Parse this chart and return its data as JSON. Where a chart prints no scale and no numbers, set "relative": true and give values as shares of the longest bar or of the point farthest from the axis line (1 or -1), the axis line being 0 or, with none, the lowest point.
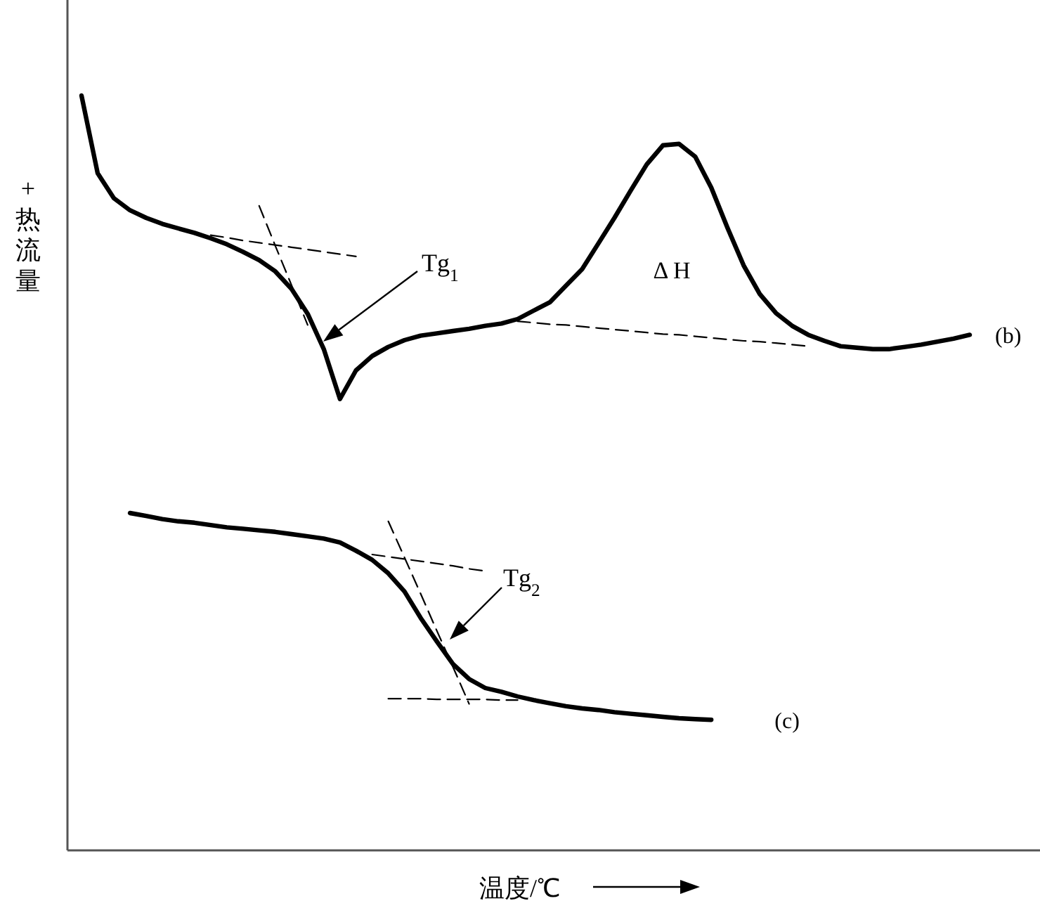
{
  "chart_data": {
    "type": "line",
    "relative": true,
    "xlabel": "温度/℃",
    "ylabel": "+热流量",
    "legend": false,
    "grid": false,
    "marker": "none",
    "line_style": "solid",
    "categories": [
      null,
      null,
      null,
      null,
      null,
      null,
      null,
      null,
      null,
      null,
      null,
      null,
      null,
      null,
      null,
      null,
      null,
      null,
      null,
      null,
      null,
      null,
      null,
      null,
      null,
      null,
      null,
      null,
      null,
      null,
      null,
      null,
      null,
      null,
      null,
      null,
      null,
      null,
      null,
      null,
      null,
      null,
      null,
      null,
      null,
      null,
      null,
      null,
      null,
      null,
      null,
      null,
      null,
      null,
      null,
      null
    ],
    "series": [
      {
        "name": "(b)",
        "color": "#000000",
        "values": [
          1.0,
          0.897,
          0.864,
          0.848,
          0.838,
          0.83,
          0.824,
          0.818,
          0.811,
          0.803,
          0.793,
          0.782,
          0.767,
          0.744,
          0.711,
          0.664,
          0.598,
          0.636,
          0.655,
          0.667,
          0.676,
          0.682,
          0.685,
          0.688,
          0.691,
          0.695,
          0.698,
          0.704,
          0.715,
          0.726,
          0.748,
          0.77,
          0.804,
          0.838,
          0.874,
          0.909,
          0.934,
          0.936,
          0.919,
          0.878,
          0.825,
          0.775,
          0.737,
          0.712,
          0.695,
          0.683,
          0.675,
          0.668,
          0.666,
          0.664,
          0.664,
          0.667,
          0.67,
          0.674,
          0.678,
          0.683
        ]
      },
      {
        "name": "(c)",
        "color": "#000000",
        "values": [
          null,
          null,
          null,
          0.447,
          0.443,
          0.439,
          0.436,
          0.434,
          0.431,
          0.428,
          0.426,
          0.424,
          0.422,
          0.419,
          0.416,
          0.413,
          0.408,
          0.397,
          0.385,
          0.367,
          0.343,
          0.308,
          0.277,
          0.247,
          0.227,
          0.215,
          0.21,
          0.204,
          0.199,
          0.195,
          0.191,
          0.188,
          0.186,
          0.183,
          0.181,
          0.179,
          0.177,
          0.175,
          0.174,
          0.173,
          null,
          null,
          null,
          null,
          null,
          null,
          null,
          null,
          null,
          null,
          null,
          null,
          null,
          null,
          null,
          null
        ]
      },
      {
        "color": "#000000",
        "line_style": "dashed",
        "values": [
          null,
          null,
          null,
          null,
          null,
          null,
          null,
          null,
          0.815,
          0.812,
          0.808,
          0.805,
          0.802,
          0.799,
          0.796,
          0.793,
          0.79,
          0.787,
          null,
          null,
          null,
          null,
          null,
          null,
          null,
          null,
          null,
          null,
          null,
          null,
          null,
          null,
          null,
          null,
          null,
          null,
          null,
          null,
          null,
          null,
          null,
          null,
          null,
          null,
          null,
          null,
          null,
          null,
          null,
          null,
          null,
          null,
          null,
          null,
          null,
          null
        ]
      },
      {
        "color": "#000000",
        "line_style": "dashed",
        "values": [
          null,
          null,
          null,
          null,
          null,
          null,
          null,
          null,
          null,
          null,
          null,
          0.854,
          0.801,
          0.749,
          0.696,
          null,
          null,
          null,
          null,
          null,
          null,
          null,
          null,
          null,
          null,
          null,
          null,
          null,
          null,
          null,
          null,
          null,
          null,
          null,
          null,
          null,
          null,
          null,
          null,
          null,
          null,
          null,
          null,
          null,
          null,
          null,
          null,
          null,
          null,
          null,
          null,
          null,
          null,
          null,
          null,
          null
        ]
      },
      {
        "color": "#000000",
        "line_style": "dashed",
        "values": [
          null,
          null,
          null,
          null,
          null,
          null,
          null,
          null,
          null,
          null,
          null,
          null,
          null,
          null,
          null,
          null,
          null,
          null,
          null,
          null,
          null,
          null,
          null,
          null,
          null,
          null,
          null,
          0.701,
          0.699,
          0.697,
          0.696,
          0.694,
          0.692,
          0.69,
          0.688,
          0.686,
          0.684,
          0.683,
          0.681,
          0.679,
          0.677,
          0.675,
          0.674,
          0.672,
          0.67,
          0.668,
          null,
          null,
          null,
          null,
          null,
          null,
          null,
          null,
          null,
          null
        ]
      },
      {
        "color": "#000000",
        "line_style": "dashed",
        "values": [
          null,
          null,
          null,
          null,
          null,
          null,
          null,
          null,
          null,
          null,
          null,
          null,
          null,
          null,
          null,
          null,
          null,
          null,
          0.392,
          0.389,
          0.386,
          0.383,
          0.38,
          0.377,
          0.373,
          0.37,
          null,
          null,
          null,
          null,
          null,
          null,
          null,
          null,
          null,
          null,
          null,
          null,
          null,
          null,
          null,
          null,
          null,
          null,
          null,
          null,
          null,
          null,
          null,
          null,
          null,
          null,
          null,
          null,
          null,
          null
        ]
      },
      {
        "color": "#000000",
        "line_style": "dashed",
        "values": [
          null,
          null,
          null,
          null,
          null,
          null,
          null,
          null,
          null,
          null,
          null,
          null,
          null,
          null,
          null,
          null,
          null,
          null,
          null,
          0.436,
          0.388,
          0.34,
          0.291,
          0.243,
          0.194,
          null,
          null,
          null,
          null,
          null,
          null,
          null,
          null,
          null,
          null,
          null,
          null,
          null,
          null,
          null,
          null,
          null,
          null,
          null,
          null,
          null,
          null,
          null,
          null,
          null,
          null,
          null,
          null,
          null,
          null,
          null
        ]
      },
      {
        "color": "#000000",
        "line_style": "dashed",
        "values": [
          null,
          null,
          null,
          null,
          null,
          null,
          null,
          null,
          null,
          null,
          null,
          null,
          null,
          null,
          null,
          null,
          null,
          null,
          null,
          0.201,
          0.201,
          0.201,
          0.2,
          0.2,
          0.2,
          0.2,
          0.199,
          0.199,
          null,
          null,
          null,
          null,
          null,
          null,
          null,
          null,
          null,
          null,
          null,
          null,
          null,
          null,
          null,
          null,
          null,
          null,
          null,
          null,
          null,
          null,
          null,
          null,
          null,
          null,
          null,
          null
        ]
      }
    ],
    "annotations": [
      "Tg$_{1}$",
      "Tg$_{2}$",
      "Δ H"
    ]
  }
}
